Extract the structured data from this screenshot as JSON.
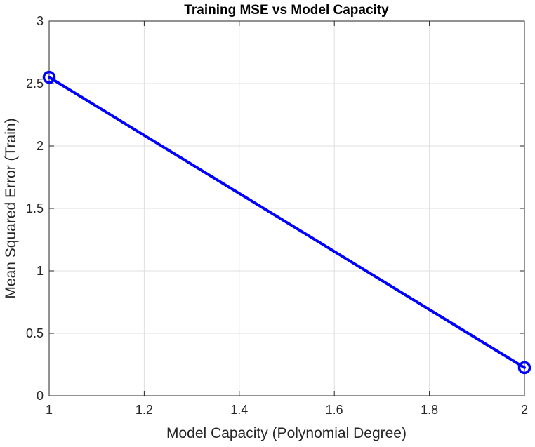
{
  "chart_data": {
    "type": "line",
    "title": "Training MSE vs Model Capacity",
    "xlabel": "Model Capacity (Polynomial Degree)",
    "ylabel": "Mean Squared Error (Train)",
    "xlim": [
      1,
      2
    ],
    "ylim": [
      0,
      3
    ],
    "xticks": [
      1,
      1.2,
      1.4,
      1.6,
      1.8,
      2
    ],
    "xtick_labels": [
      "1",
      "1.2",
      "1.4",
      "1.6",
      "1.8",
      "2"
    ],
    "yticks": [
      0,
      0.5,
      1,
      1.5,
      2,
      2.5,
      3
    ],
    "ytick_labels": [
      "0",
      "0.5",
      "1",
      "1.5",
      "2",
      "2.5",
      "3"
    ],
    "grid": true,
    "series": [
      {
        "x": [
          1,
          2
        ],
        "y": [
          2.55,
          0.225
        ],
        "color": "#0000ff",
        "marker": "circle-open"
      }
    ]
  }
}
